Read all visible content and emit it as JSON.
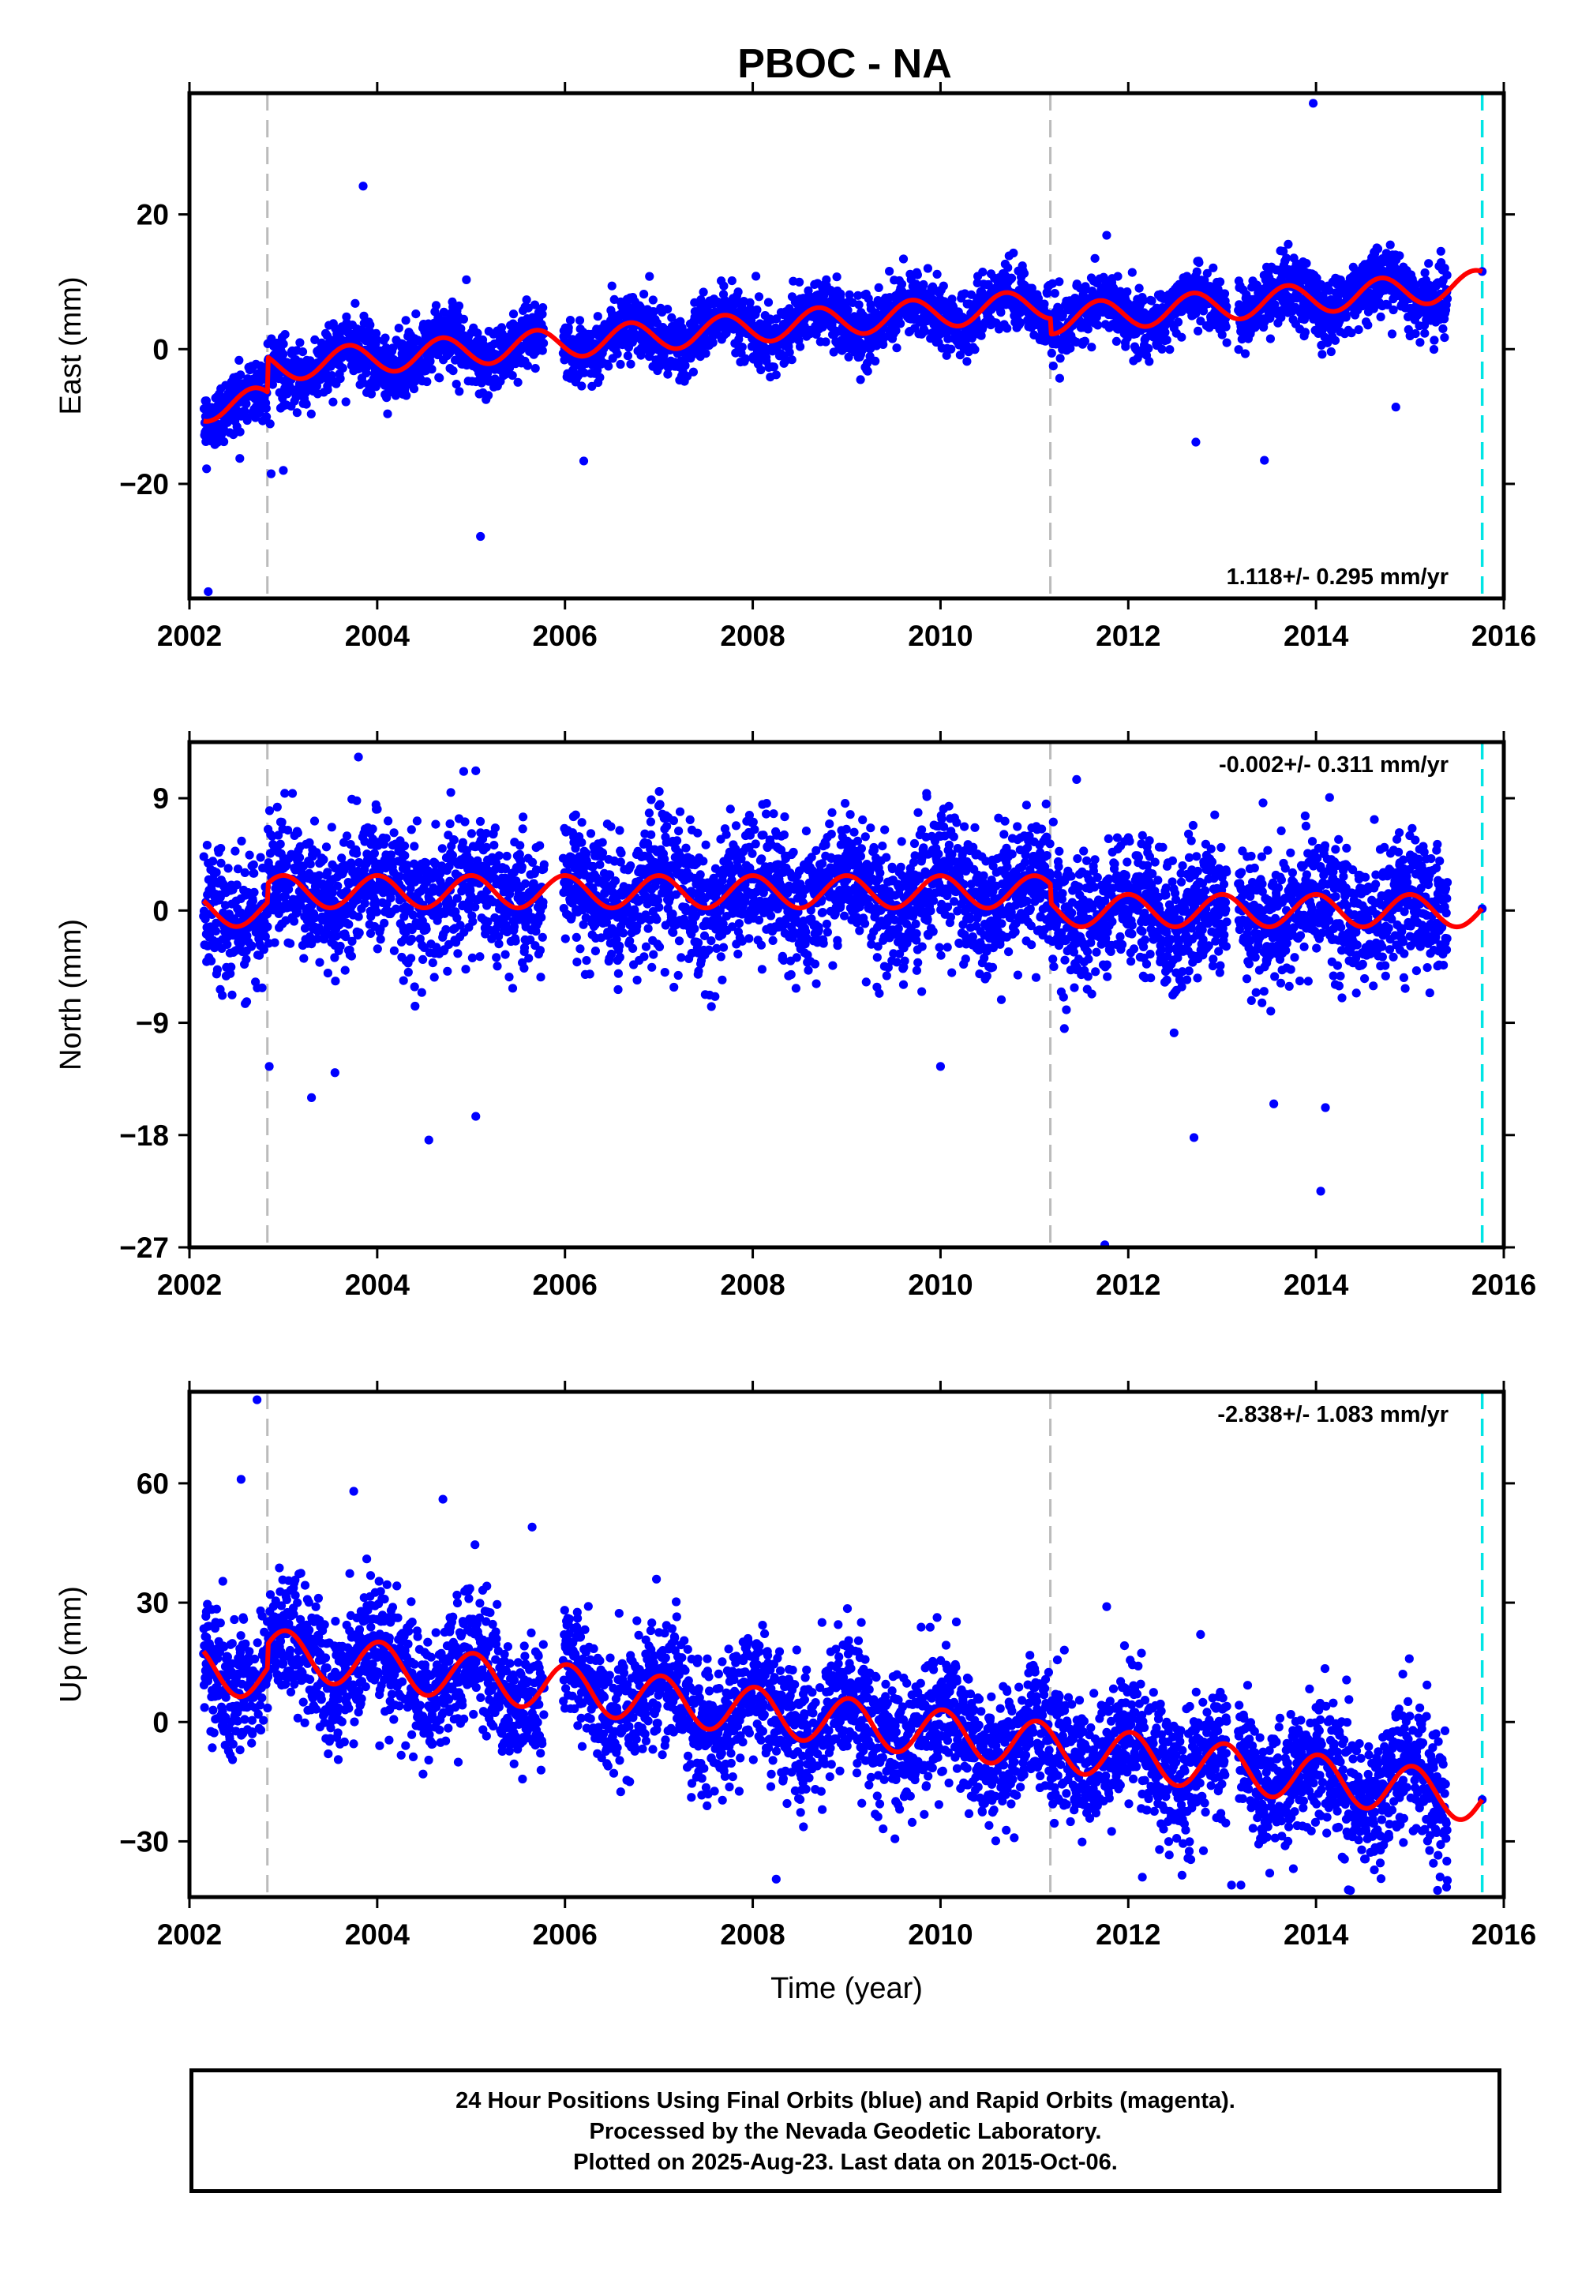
{
  "title": "PBOC - NA",
  "footer_lines": [
    "24 Hour Positions Using Final Orbits (blue) and Rapid Orbits (magenta).",
    "Processed by the Nevada Geodetic Laboratory.",
    "Plotted on 2025-Aug-23. Last data on 2015-Oct-06."
  ],
  "colors": {
    "data_points": "#0000ff",
    "model_fit": "#ff0000",
    "equipment_change_lines": "#bbbbbb",
    "last_data_line": "#00e5e5"
  },
  "chart_data": [
    {
      "type": "scatter",
      "ylabel": "East (mm)",
      "xlabel": "",
      "xlim": [
        2002.0,
        2016.0
      ],
      "ylim": [
        -37,
        38
      ],
      "x_ticks": [
        2002,
        2004,
        2006,
        2008,
        2010,
        2012,
        2014,
        2016
      ],
      "y_ticks": [
        -20,
        0,
        20
      ],
      "y_tick_labels": [
        "−20",
        "0",
        "20"
      ],
      "rate_text": "1.118+/- 0.295 mm/yr",
      "rate_position": "bottom-right",
      "data_span": [
        2002.15,
        2015.4
      ],
      "gaps": [
        [
          2005.78,
          2005.98
        ],
        [
          2013.05,
          2013.17
        ]
      ],
      "last_data_year": 2015.77,
      "steps": [
        2002.83,
        2011.17
      ],
      "trend": {
        "y0": 2.0,
        "rate": 1.118,
        "ref_year": 2009.0
      },
      "offsets": [
        [
          2002.83,
          -5.2
        ],
        [
          2011.17,
          2.3
        ]
      ],
      "annual_amplitude": 2.2,
      "annual_phase_deg": 200,
      "noise_sigma": 2.3,
      "outliers": [
        [
          2002.2,
          -36
        ],
        [
          2003.85,
          24.2
        ],
        [
          2005.1,
          -27.8
        ],
        [
          2013.97,
          36.5
        ],
        [
          2013.45,
          -16.5
        ],
        [
          2012.72,
          -13.8
        ],
        [
          2014.85,
          -8.6
        ],
        [
          2002.87,
          -18.5
        ],
        [
          2003.0,
          -18
        ],
        [
          2006.2,
          -16.6
        ],
        [
          2006.9,
          10.8
        ],
        [
          2004.95,
          10.3
        ],
        [
          2011.77,
          16.9
        ]
      ]
    },
    {
      "type": "scatter",
      "ylabel": "North (mm)",
      "xlabel": "",
      "xlim": [
        2002.0,
        2016.0
      ],
      "ylim": [
        -27,
        13.5
      ],
      "x_ticks": [
        2002,
        2004,
        2006,
        2008,
        2010,
        2012,
        2014,
        2016
      ],
      "y_ticks": [
        -27,
        -18,
        -9,
        0,
        9
      ],
      "y_tick_labels": [
        "−27",
        "−18",
        "−9",
        "0",
        "9"
      ],
      "rate_text": "-0.002+/- 0.311 mm/yr",
      "rate_position": "top-right",
      "data_span": [
        2002.15,
        2015.4
      ],
      "gaps": [
        [
          2005.78,
          2005.98
        ],
        [
          2013.05,
          2013.17
        ]
      ],
      "last_data_year": 2015.77,
      "steps": [
        2002.83,
        2011.17
      ],
      "trend": {
        "y0": 0.0,
        "rate": -0.002,
        "ref_year": 2009.0
      },
      "offsets": [
        [
          2002.83,
          -1.5
        ],
        [
          2011.17,
          1.5
        ]
      ],
      "annual_amplitude": 1.3,
      "annual_phase_deg": 90,
      "noise_sigma": 2.6,
      "outliers": [
        [
          2003.8,
          12.3
        ],
        [
          2005.05,
          11.2
        ],
        [
          2004.55,
          -18.4
        ],
        [
          2005.05,
          -16.5
        ],
        [
          2011.75,
          -26.8
        ],
        [
          2014.05,
          -22.5
        ],
        [
          2013.55,
          -15.5
        ],
        [
          2012.7,
          -18.2
        ],
        [
          2010.0,
          -12.5
        ],
        [
          2002.85,
          -12.5
        ],
        [
          2003.3,
          -15
        ],
        [
          2003.55,
          -13
        ],
        [
          2014.1,
          -15.8
        ],
        [
          2009.8,
          -6.5
        ],
        [
          2011.45,
          10.5
        ]
      ]
    },
    {
      "type": "scatter",
      "ylabel": "Up (mm)",
      "xlabel": "Time (year)",
      "xlim": [
        2002.0,
        2016.0
      ],
      "ylim": [
        -44,
        83
      ],
      "x_ticks": [
        2002,
        2004,
        2006,
        2008,
        2010,
        2012,
        2014,
        2016
      ],
      "y_ticks": [
        -30,
        0,
        30,
        60
      ],
      "y_tick_labels": [
        "−30",
        "0",
        "30",
        "60"
      ],
      "rate_text": "-2.838+/- 1.083 mm/yr",
      "rate_position": "top-right",
      "data_span": [
        2002.15,
        2015.4
      ],
      "gaps": [
        [
          2005.78,
          2005.98
        ],
        [
          2013.05,
          2013.17
        ]
      ],
      "last_data_year": 2015.77,
      "steps": [
        2002.83,
        2011.17
      ],
      "trend": {
        "y0": 0.0,
        "rate": -2.838,
        "ref_year": 2009.0
      },
      "offsets": [
        [
          2002.83,
          -6.0
        ],
        [
          2011.17,
          0.0
        ]
      ],
      "annual_amplitude": 6.0,
      "annual_phase_deg": 80,
      "noise_sigma": 8.0,
      "outliers": [
        [
          2002.72,
          81
        ],
        [
          2008.25,
          -39.5
        ],
        [
          2012.15,
          -39
        ],
        [
          2013.1,
          -41
        ],
        [
          2013.2,
          -41
        ],
        [
          2002.55,
          61
        ],
        [
          2003.75,
          58
        ],
        [
          2004.7,
          56
        ],
        [
          2005.65,
          49
        ],
        [
          2011.77,
          29
        ],
        [
          2015.25,
          -35.5
        ],
        [
          2015.3,
          -33.5
        ],
        [
          2012.77,
          22
        ]
      ]
    }
  ]
}
